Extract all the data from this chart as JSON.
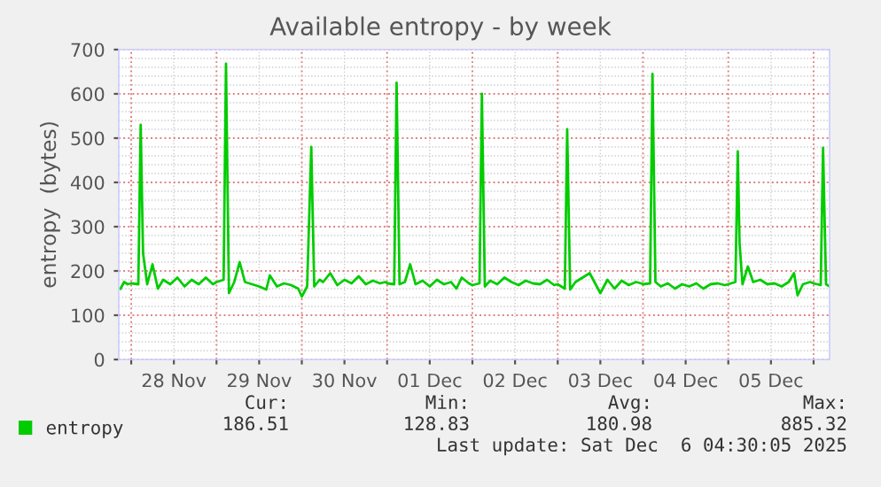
{
  "chart_data": {
    "type": "line",
    "title": "Available entropy - by week",
    "ylabel": "entropy  (bytes)",
    "x": [
      "2025-11-27T21:00",
      "2025-11-27T22:00",
      "2025-11-27T23:00",
      "2025-11-28T00:00",
      "2025-11-28T02:00",
      "2025-11-28T02:40",
      "2025-11-28T03:20",
      "2025-11-28T04:30",
      "2025-11-28T06:00",
      "2025-11-28T07:30",
      "2025-11-28T09:00",
      "2025-11-28T11:00",
      "2025-11-28T13:00",
      "2025-11-28T15:00",
      "2025-11-28T17:00",
      "2025-11-28T19:00",
      "2025-11-28T21:00",
      "2025-11-28T23:00",
      "2025-11-29T00:00",
      "2025-11-29T02:00",
      "2025-11-29T02:40",
      "2025-11-29T03:30",
      "2025-11-29T05:00",
      "2025-11-29T06:30",
      "2025-11-29T08:00",
      "2025-11-29T10:00",
      "2025-11-29T12:00",
      "2025-11-29T14:00",
      "2025-11-29T15:00",
      "2025-11-29T17:00",
      "2025-11-29T19:00",
      "2025-11-29T21:00",
      "2025-11-29T23:00",
      "2025-11-30T00:00",
      "2025-11-30T01:30",
      "2025-11-30T02:40",
      "2025-11-30T03:30",
      "2025-11-30T05:00",
      "2025-11-30T06:00",
      "2025-11-30T08:00",
      "2025-11-30T10:00",
      "2025-11-30T12:00",
      "2025-11-30T14:00",
      "2025-11-30T16:00",
      "2025-11-30T18:00",
      "2025-11-30T20:00",
      "2025-11-30T22:00",
      "2025-11-30T23:30",
      "2025-12-01T00:00",
      "2025-12-01T02:00",
      "2025-12-01T02:40",
      "2025-12-01T03:30",
      "2025-12-01T05:00",
      "2025-12-01T06:30",
      "2025-12-01T08:00",
      "2025-12-01T10:00",
      "2025-12-01T12:00",
      "2025-12-01T14:00",
      "2025-12-01T16:00",
      "2025-12-01T18:00",
      "2025-12-01T19:30",
      "2025-12-01T21:00",
      "2025-12-01T23:00",
      "2025-12-02T00:00",
      "2025-12-02T02:00",
      "2025-12-02T02:40",
      "2025-12-02T03:30",
      "2025-12-02T05:00",
      "2025-12-02T07:00",
      "2025-12-02T09:00",
      "2025-12-02T11:00",
      "2025-12-02T13:00",
      "2025-12-02T15:00",
      "2025-12-02T17:00",
      "2025-12-02T19:00",
      "2025-12-02T21:00",
      "2025-12-02T23:00",
      "2025-12-03T00:00",
      "2025-12-03T02:00",
      "2025-12-03T02:40",
      "2025-12-03T03:30",
      "2025-12-03T05:00",
      "2025-12-03T07:00",
      "2025-12-03T09:00",
      "2025-12-03T11:00",
      "2025-12-03T12:00",
      "2025-12-03T14:00",
      "2025-12-03T16:00",
      "2025-12-03T18:00",
      "2025-12-03T20:00",
      "2025-12-03T22:00",
      "2025-12-03T23:30",
      "2025-12-04T00:00",
      "2025-12-04T02:00",
      "2025-12-04T02:40",
      "2025-12-04T03:30",
      "2025-12-04T05:00",
      "2025-12-04T07:00",
      "2025-12-04T09:00",
      "2025-12-04T11:00",
      "2025-12-04T13:00",
      "2025-12-04T15:00",
      "2025-12-04T17:00",
      "2025-12-04T19:00",
      "2025-12-04T21:00",
      "2025-12-04T23:00",
      "2025-12-05T00:00",
      "2025-12-05T02:00",
      "2025-12-05T02:40",
      "2025-12-05T03:10",
      "2025-12-05T04:00",
      "2025-12-05T05:30",
      "2025-12-05T07:00",
      "2025-12-05T09:00",
      "2025-12-05T11:00",
      "2025-12-05T13:00",
      "2025-12-05T15:00",
      "2025-12-05T17:00",
      "2025-12-05T18:30",
      "2025-12-05T19:30",
      "2025-12-05T21:00",
      "2025-12-05T23:00",
      "2025-12-06T00:00",
      "2025-12-06T02:00",
      "2025-12-06T02:40",
      "2025-12-06T03:30",
      "2025-12-06T04:30"
    ],
    "series": [
      {
        "name": "entropy",
        "color": "#00cc00",
        "values": [
          160,
          175,
          170,
          172,
          170,
          530,
          240,
          170,
          215,
          160,
          180,
          170,
          185,
          165,
          180,
          170,
          185,
          170,
          175,
          180,
          668,
          150,
          175,
          220,
          175,
          170,
          165,
          158,
          190,
          165,
          172,
          168,
          160,
          142,
          165,
          480,
          165,
          180,
          175,
          195,
          168,
          180,
          172,
          188,
          170,
          178,
          172,
          175,
          172,
          170,
          625,
          170,
          175,
          215,
          170,
          178,
          165,
          180,
          170,
          175,
          160,
          185,
          172,
          168,
          172,
          600,
          165,
          178,
          170,
          185,
          175,
          168,
          178,
          172,
          170,
          180,
          168,
          170,
          160,
          520,
          158,
          175,
          185,
          195,
          165,
          150,
          180,
          160,
          178,
          168,
          175,
          172,
          170,
          172,
          645,
          175,
          165,
          172,
          160,
          170,
          165,
          172,
          160,
          170,
          172,
          168,
          170,
          175,
          470,
          263,
          170,
          210,
          175,
          180,
          170,
          172,
          165,
          175,
          195,
          145,
          170,
          175,
          172,
          168,
          478,
          170,
          165
        ]
      }
    ],
    "xlim": [
      "2025-11-27T20:30",
      "2025-12-06T04:30"
    ],
    "xticks": [
      {
        "value": "2025-11-28T00:00",
        "label": null
      },
      {
        "value": "2025-11-28T12:00",
        "label": "28 Nov"
      },
      {
        "value": "2025-11-29T00:00",
        "label": null
      },
      {
        "value": "2025-11-29T12:00",
        "label": "29 Nov"
      },
      {
        "value": "2025-11-30T00:00",
        "label": null
      },
      {
        "value": "2025-11-30T12:00",
        "label": "30 Nov"
      },
      {
        "value": "2025-12-01T00:00",
        "label": null
      },
      {
        "value": "2025-12-01T12:00",
        "label": "01 Dec"
      },
      {
        "value": "2025-12-02T00:00",
        "label": null
      },
      {
        "value": "2025-12-02T12:00",
        "label": "02 Dec"
      },
      {
        "value": "2025-12-03T00:00",
        "label": null
      },
      {
        "value": "2025-12-03T12:00",
        "label": "03 Dec"
      },
      {
        "value": "2025-12-04T00:00",
        "label": null
      },
      {
        "value": "2025-12-04T12:00",
        "label": "04 Dec"
      },
      {
        "value": "2025-12-05T00:00",
        "label": null
      },
      {
        "value": "2025-12-05T12:00",
        "label": "05 Dec"
      },
      {
        "value": "2025-12-06T00:00",
        "label": null
      }
    ],
    "ylim": [
      0,
      700
    ],
    "yticks": [
      0,
      100,
      200,
      300,
      400,
      500,
      600,
      700
    ],
    "grid": true,
    "legend": "bottom left",
    "marker": "none",
    "line_style": "solid",
    "annotations": [
      "Cur:",
      "186.51",
      "Min:",
      "128.83",
      "Avg:",
      "180.98",
      "Max:",
      "885.32",
      "Last update: Sat Dec  6 04:30:05 2025"
    ]
  }
}
